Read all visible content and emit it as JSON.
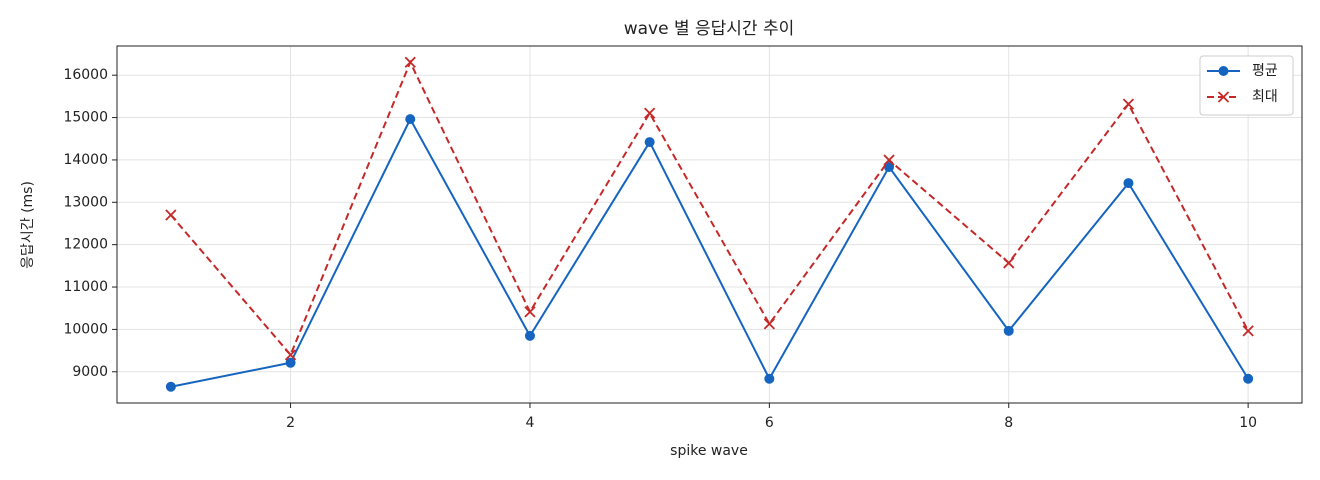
{
  "chart_data": {
    "type": "line",
    "title": "wave 별 응답시간 추이",
    "xlabel": "spike wave",
    "ylabel": "응답시간 (ms)",
    "x": [
      1,
      2,
      3,
      4,
      5,
      6,
      7,
      8,
      9,
      10
    ],
    "series": [
      {
        "name": "평균",
        "color": "#1565c0",
        "marker": "circle",
        "dashed": false,
        "values": [
          8646,
          9212,
          14963,
          9848,
          14421,
          8835,
          13832,
          9966,
          13454,
          8835
        ]
      },
      {
        "name": "최대",
        "color": "#c62828",
        "marker": "cross",
        "dashed": true,
        "values": [
          12700,
          9400,
          16306,
          10414,
          15104,
          10131,
          13997,
          11569,
          15317,
          9966
        ]
      }
    ],
    "xlim": [
      0.55,
      10.45
    ],
    "ylim": [
      8263,
      16689
    ],
    "xticks": [
      2,
      4,
      6,
      8,
      10
    ],
    "yticks": [
      9000,
      10000,
      11000,
      12000,
      13000,
      14000,
      15000,
      16000
    ],
    "grid": true,
    "legend": "upper-right"
  }
}
